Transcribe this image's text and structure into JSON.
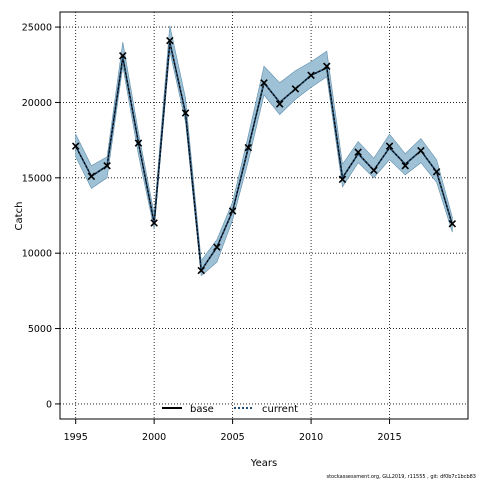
{
  "chart_data": {
    "type": "line",
    "xlabel": "Years",
    "ylabel": "Catch",
    "xlim": [
      1994,
      2020
    ],
    "ylim": [
      -1000,
      26000
    ],
    "xticks": [
      1995,
      2000,
      2005,
      2010,
      2015
    ],
    "yticks": [
      0,
      5000,
      10000,
      15000,
      20000,
      25000
    ],
    "grid": true,
    "legend_position": "bottom-center",
    "x": [
      1995,
      1996,
      1997,
      1998,
      1999,
      2000,
      2001,
      2002,
      2003,
      2004,
      2005,
      2006,
      2007,
      2008,
      2009,
      2010,
      2011,
      2012,
      2013,
      2014,
      2015,
      2016,
      2017,
      2018,
      2019
    ],
    "series": [
      {
        "name": "base",
        "line_style": "solid",
        "color": "#000000",
        "values": [
          17100,
          15100,
          15800,
          23000,
          17300,
          12000,
          24000,
          19300,
          8850,
          10400,
          12800,
          17000,
          21300,
          20000,
          20900,
          21800,
          22300,
          15000,
          16600,
          15500,
          17000,
          15900,
          16800,
          15400,
          11900
        ]
      },
      {
        "name": "current",
        "line_style": "dotted",
        "color": "#1f77b4",
        "values": [
          17100,
          15100,
          15800,
          23000,
          17300,
          12000,
          24000,
          19300,
          8850,
          10400,
          12800,
          17000,
          21300,
          20000,
          20900,
          21800,
          22300,
          15000,
          16600,
          15500,
          17000,
          15900,
          16800,
          15400,
          11900
        ]
      }
    ],
    "observed": {
      "marker": "x",
      "values": [
        17100,
        15100,
        15800,
        23100,
        17300,
        12000,
        24100,
        19300,
        8850,
        10400,
        12800,
        17000,
        21300,
        19900,
        20900,
        21800,
        22400,
        14900,
        16700,
        15500,
        17100,
        15800,
        16800,
        15400,
        11950
      ]
    },
    "uncertainty_band": {
      "color": "#9fc1d6",
      "upper": [
        17900,
        15800,
        16400,
        24000,
        18000,
        12600,
        25100,
        20300,
        9500,
        10900,
        13400,
        17800,
        22400,
        21300,
        22100,
        22700,
        23400,
        15900,
        17400,
        16300,
        17900,
        16600,
        17600,
        16200,
        12400
      ],
      "lower": [
        16400,
        14300,
        15000,
        22400,
        16500,
        11600,
        23400,
        18700,
        8500,
        9400,
        12200,
        16100,
        20500,
        19200,
        20200,
        21000,
        21700,
        14400,
        16000,
        15000,
        16200,
        15200,
        16000,
        14700,
        11400
      ]
    }
  },
  "footer": "stockassessment.org, GLL2019, r11555 , git: df0b7c1bcb83",
  "colors": {
    "band_fill": "#9fc1d6",
    "band_stroke": "#5f8fae",
    "current_line": "#1f4e79",
    "base_line": "#000000",
    "grid": "#000000"
  }
}
